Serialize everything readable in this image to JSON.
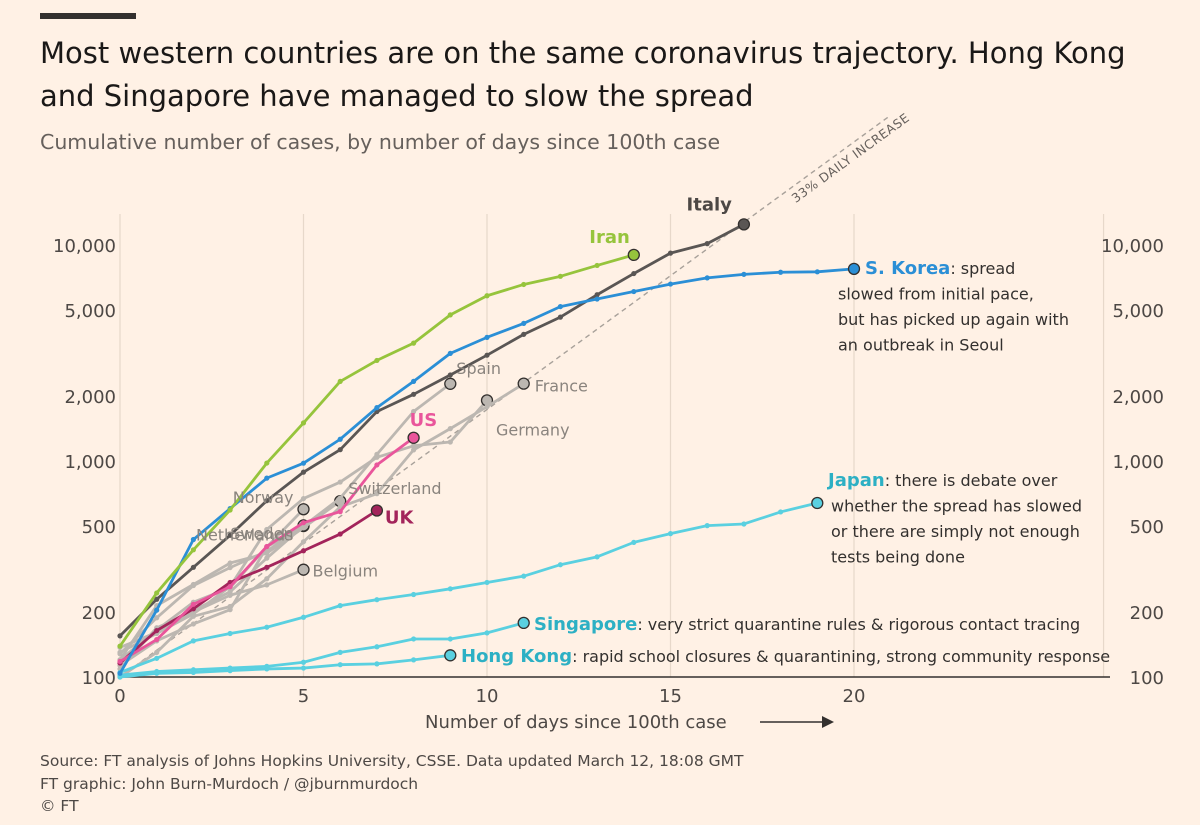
{
  "header": {
    "title": "Most western countries are on the same coronavirus trajectory. Hong Kong and Singapore have managed to slow the spread",
    "subtitle": "Cumulative number of cases, by number of days since 100th case"
  },
  "footer": {
    "source": "Source: FT analysis of Johns Hopkins University, CSSE. Data updated March 12, 18:08 GMT",
    "credit": "FT graphic: John Burn-Murdoch / @jburnmurdoch",
    "copyright": "© FT"
  },
  "chart_data": {
    "type": "line",
    "title": "Most western countries are on the same coronavirus trajectory. Hong Kong and Singapore have managed to slow the spread",
    "subtitle": "Cumulative number of cases, by number of days since 100th case",
    "xlabel": "Number of days since 100th case",
    "ylabel": "",
    "yscale": "log",
    "xlim": [
      0,
      27
    ],
    "ylim": [
      100,
      16000
    ],
    "x_ticks": [
      0,
      5,
      10,
      15,
      20
    ],
    "y_ticks": [
      100,
      200,
      500,
      1000,
      2000,
      5000,
      10000
    ],
    "y_tick_labels": [
      "100",
      "200",
      "500",
      "1,000",
      "2,000",
      "5,000",
      "10,000"
    ],
    "grid": "vertical",
    "reference_line": {
      "label": "33% DAILY INCREASE",
      "start": [
        0,
        100
      ],
      "daily_growth": 1.33,
      "end_x": 21
    },
    "series": [
      {
        "name": "Italy",
        "color": "#5a5654",
        "end_label": "Italy",
        "values": [
          [
            0,
            155
          ],
          [
            1,
            229
          ],
          [
            2,
            322
          ],
          [
            3,
            453
          ],
          [
            4,
            655
          ],
          [
            5,
            888
          ],
          [
            6,
            1128
          ],
          [
            7,
            1694
          ],
          [
            8,
            2036
          ],
          [
            9,
            2502
          ],
          [
            10,
            3089
          ],
          [
            11,
            3858
          ],
          [
            12,
            4636
          ],
          [
            13,
            5883
          ],
          [
            14,
            7375
          ],
          [
            15,
            9172
          ],
          [
            16,
            10149
          ],
          [
            17,
            12462
          ]
        ]
      },
      {
        "name": "Iran",
        "color": "#96c43c",
        "end_label": "Iran",
        "values": [
          [
            0,
            139
          ],
          [
            1,
            245
          ],
          [
            2,
            388
          ],
          [
            3,
            593
          ],
          [
            4,
            978
          ],
          [
            5,
            1501
          ],
          [
            6,
            2336
          ],
          [
            7,
            2922
          ],
          [
            8,
            3513
          ],
          [
            9,
            4747
          ],
          [
            10,
            5823
          ],
          [
            11,
            6566
          ],
          [
            12,
            7161
          ],
          [
            13,
            8042
          ],
          [
            14,
            9000
          ]
        ]
      },
      {
        "name": "S. Korea",
        "color": "#2b8fd6",
        "end_label": "S. Korea",
        "note": ": spread slowed from initial pace, but has picked up again with an outbreak in Seoul",
        "values": [
          [
            0,
            104
          ],
          [
            1,
            204
          ],
          [
            2,
            433
          ],
          [
            3,
            602
          ],
          [
            4,
            833
          ],
          [
            5,
            977
          ],
          [
            6,
            1261
          ],
          [
            7,
            1766
          ],
          [
            8,
            2337
          ],
          [
            9,
            3150
          ],
          [
            10,
            3736
          ],
          [
            11,
            4335
          ],
          [
            12,
            5186
          ],
          [
            13,
            5621
          ],
          [
            14,
            6088
          ],
          [
            15,
            6593
          ],
          [
            16,
            7041
          ],
          [
            17,
            7314
          ],
          [
            18,
            7478
          ],
          [
            19,
            7513
          ],
          [
            20,
            7755
          ]
        ]
      },
      {
        "name": "Spain",
        "color": "#bcb7b1",
        "end_label": "Spain",
        "values": [
          [
            0,
            120
          ],
          [
            1,
            165
          ],
          [
            2,
            222
          ],
          [
            3,
            259
          ],
          [
            4,
            400
          ],
          [
            5,
            500
          ],
          [
            6,
            673
          ],
          [
            7,
            1073
          ],
          [
            8,
            1695
          ],
          [
            9,
            2277
          ]
        ]
      },
      {
        "name": "France",
        "color": "#bcb7b1",
        "end_label": "France",
        "values": [
          [
            0,
            100
          ],
          [
            1,
            130
          ],
          [
            2,
            191
          ],
          [
            3,
            212
          ],
          [
            4,
            285
          ],
          [
            5,
            423
          ],
          [
            6,
            613
          ],
          [
            7,
            706
          ],
          [
            8,
            1126
          ],
          [
            9,
            1412
          ],
          [
            10,
            1784
          ],
          [
            11,
            2281
          ]
        ]
      },
      {
        "name": "Germany",
        "color": "#bcb7b1",
        "end_label": "Germany",
        "values": [
          [
            0,
            130
          ],
          [
            1,
            159
          ],
          [
            2,
            196
          ],
          [
            3,
            262
          ],
          [
            4,
            482
          ],
          [
            5,
            670
          ],
          [
            6,
            799
          ],
          [
            7,
            1040
          ],
          [
            8,
            1176
          ],
          [
            9,
            1224
          ],
          [
            10,
            1908
          ]
        ]
      },
      {
        "name": "US",
        "color": "#e9559b",
        "end_label": "US",
        "values": [
          [
            0,
            118
          ],
          [
            1,
            149
          ],
          [
            2,
            217
          ],
          [
            3,
            262
          ],
          [
            4,
            402
          ],
          [
            5,
            518
          ],
          [
            6,
            583
          ],
          [
            7,
            959
          ],
          [
            8,
            1281
          ]
        ]
      },
      {
        "name": "Switzerland",
        "color": "#bcb7b1",
        "end_label": "Switzerland",
        "values": [
          [
            0,
            120
          ],
          [
            1,
            214
          ],
          [
            2,
            268
          ],
          [
            3,
            337
          ],
          [
            4,
            374
          ],
          [
            5,
            491
          ],
          [
            6,
            652
          ]
        ]
      },
      {
        "name": "Norway",
        "color": "#bcb7b1",
        "end_label": "Norway",
        "values": [
          [
            0,
            113
          ],
          [
            1,
            147
          ],
          [
            2,
            176
          ],
          [
            3,
            205
          ],
          [
            4,
            400
          ],
          [
            5,
            598
          ]
        ]
      },
      {
        "name": "Netherlands",
        "color": "#bcb7b1",
        "end_label": "Netherlands",
        "values": [
          [
            0,
            128
          ],
          [
            1,
            188
          ],
          [
            2,
            265
          ],
          [
            3,
            321
          ],
          [
            4,
            382
          ],
          [
            5,
            503
          ]
        ]
      },
      {
        "name": "Sweden",
        "color": "#bcb7b1",
        "end_label": "Sweden",
        "values": [
          [
            0,
            137
          ],
          [
            1,
            161
          ],
          [
            2,
            203
          ],
          [
            3,
            248
          ],
          [
            4,
            355
          ],
          [
            5,
            500
          ]
        ]
      },
      {
        "name": "UK",
        "color": "#a3245b",
        "end_label": "UK",
        "values": [
          [
            0,
            116
          ],
          [
            1,
            164
          ],
          [
            2,
            207
          ],
          [
            3,
            274
          ],
          [
            4,
            322
          ],
          [
            5,
            384
          ],
          [
            6,
            459
          ],
          [
            7,
            590
          ]
        ]
      },
      {
        "name": "Belgium",
        "color": "#bcb7b1",
        "end_label": "Belgium",
        "values": [
          [
            0,
            109
          ],
          [
            1,
            169
          ],
          [
            2,
            200
          ],
          [
            3,
            239
          ],
          [
            4,
            267
          ],
          [
            5,
            314
          ]
        ]
      },
      {
        "name": "Japan",
        "color": "#5ad0e0",
        "end_label": "Japan",
        "note": ": there is debate over whether the spread has slowed or there are simply not enough tests being done",
        "values": [
          [
            0,
            105
          ],
          [
            1,
            122
          ],
          [
            2,
            147
          ],
          [
            3,
            159
          ],
          [
            4,
            170
          ],
          [
            5,
            189
          ],
          [
            6,
            214
          ],
          [
            7,
            228
          ],
          [
            8,
            241
          ],
          [
            9,
            256
          ],
          [
            10,
            274
          ],
          [
            11,
            293
          ],
          [
            12,
            331
          ],
          [
            13,
            360
          ],
          [
            14,
            420
          ],
          [
            15,
            461
          ],
          [
            16,
            502
          ],
          [
            17,
            511
          ],
          [
            18,
            581
          ],
          [
            19,
            639
          ]
        ]
      },
      {
        "name": "Singapore",
        "color": "#5ad0e0",
        "end_label": "Singapore",
        "note": ": very strict quarantine rules & rigorous contact tracing",
        "values": [
          [
            0,
            102
          ],
          [
            1,
            106
          ],
          [
            2,
            108
          ],
          [
            3,
            110
          ],
          [
            4,
            112
          ],
          [
            5,
            117
          ],
          [
            6,
            130
          ],
          [
            7,
            138
          ],
          [
            8,
            150
          ],
          [
            9,
            150
          ],
          [
            10,
            160
          ],
          [
            11,
            178
          ]
        ]
      },
      {
        "name": "Hong Kong",
        "color": "#5ad0e0",
        "end_label": "Hong Kong",
        "note": ": rapid school closures & quarantining, strong community response",
        "values": [
          [
            0,
            100
          ],
          [
            1,
            104
          ],
          [
            2,
            105
          ],
          [
            3,
            107
          ],
          [
            4,
            109
          ],
          [
            5,
            110
          ],
          [
            6,
            114
          ],
          [
            7,
            115
          ],
          [
            8,
            120
          ],
          [
            9,
            126
          ]
        ]
      }
    ]
  }
}
